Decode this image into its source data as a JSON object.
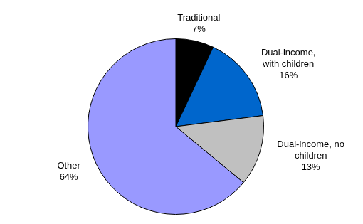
{
  "chart_data": {
    "type": "pie",
    "categories": [
      "Traditional",
      "Dual-income, with children",
      "Dual-income, no children",
      "Other"
    ],
    "values": [
      7,
      16,
      13,
      64
    ],
    "value_labels": [
      "7%",
      "16%",
      "13%",
      "64%"
    ],
    "colors": [
      "#000000",
      "#0066cc",
      "#c0c0c0",
      "#9999ff"
    ],
    "data_labels": true
  }
}
